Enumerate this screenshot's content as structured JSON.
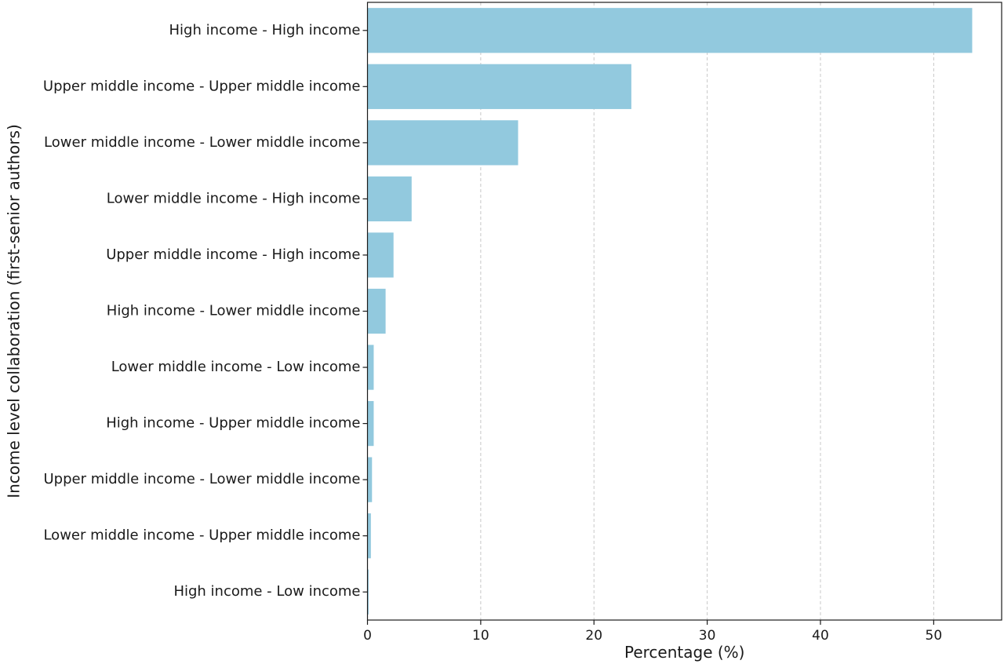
{
  "chart_data": {
    "type": "bar",
    "orientation": "horizontal",
    "categories": [
      "High income - High income",
      "Upper middle income - Upper middle income",
      "Lower middle income - Lower middle income",
      "Lower middle income - High income",
      "Upper middle income - High income",
      "High income - Lower middle income",
      "Lower middle income - Low income",
      "High income - Upper middle income",
      "Upper middle income - Lower middle income",
      "Lower middle income - Upper middle income",
      "High income - Low income"
    ],
    "values": [
      53.4,
      23.3,
      13.3,
      3.9,
      2.3,
      1.6,
      0.55,
      0.55,
      0.4,
      0.3,
      0.1
    ],
    "xlabel": "Percentage (%)",
    "ylabel": "Income level collaboration (first-senior authors)",
    "xlim": [
      0,
      56
    ],
    "xticks": [
      0,
      10,
      20,
      30,
      40,
      50
    ],
    "grid": "x, dashed",
    "bar_color": "#92c9de"
  }
}
